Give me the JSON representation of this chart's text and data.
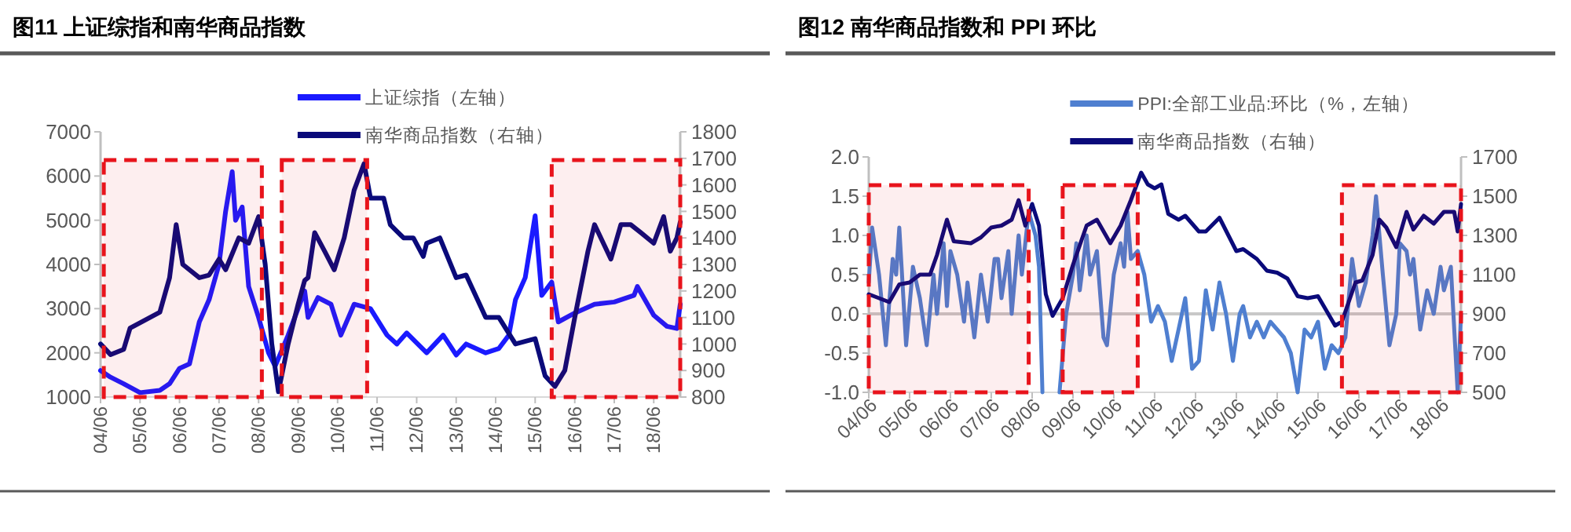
{
  "chart_data": [
    {
      "type": "line",
      "title": "图11  上证综指和南华商品指数",
      "legend": "top",
      "xlim": [
        "2004-06",
        "2019-02"
      ],
      "xticks": [
        {
          "value": "2004-06",
          "label": "04/06"
        },
        {
          "value": "2005-06",
          "label": "05/06"
        },
        {
          "value": "2006-06",
          "label": "06/06"
        },
        {
          "value": "2007-06",
          "label": "07/06"
        },
        {
          "value": "2008-06",
          "label": "08/06"
        },
        {
          "value": "2009-06",
          "label": "09/06"
        },
        {
          "value": "2010-06",
          "label": "10/06"
        },
        {
          "value": "2011-06",
          "label": "11/06"
        },
        {
          "value": "2012-06",
          "label": "12/06"
        },
        {
          "value": "2013-06",
          "label": "13/06"
        },
        {
          "value": "2014-06",
          "label": "14/06"
        },
        {
          "value": "2015-06",
          "label": "15/06"
        },
        {
          "value": "2016-06",
          "label": "16/06"
        },
        {
          "value": "2017-06",
          "label": "17/06"
        },
        {
          "value": "2018-06",
          "label": "18/06"
        }
      ],
      "ylim": [
        1000,
        7000
      ],
      "yticks": [
        1000,
        2000,
        3000,
        4000,
        5000,
        6000,
        7000
      ],
      "y2lim": [
        800,
        1800
      ],
      "y2ticks": [
        800,
        900,
        1000,
        1100,
        1200,
        1300,
        1400,
        1500,
        1600,
        1700,
        1800
      ],
      "bands": [
        {
          "axis": "x",
          "from": "2004-07",
          "to": "2008-07",
          "color": "#e8141c"
        },
        {
          "axis": "x",
          "from": "2009-01",
          "to": "2011-03",
          "color": "#e8141c"
        },
        {
          "axis": "x",
          "from": "2015-11",
          "to": "2019-02",
          "color": "#e8141c"
        }
      ],
      "series": [
        {
          "name": "上证综指（左轴）",
          "color": "#1a1aff",
          "x": [
            "2004-06",
            "2004-09",
            "2005-01",
            "2005-06",
            "2005-12",
            "2006-03",
            "2006-06",
            "2006-09",
            "2006-12",
            "2007-03",
            "2007-06",
            "2007-08",
            "2007-10",
            "2007-11",
            "2008-01",
            "2008-03",
            "2008-06",
            "2008-09",
            "2008-11",
            "2009-03",
            "2009-08",
            "2009-09",
            "2009-12",
            "2010-04",
            "2010-07",
            "2010-11",
            "2011-04",
            "2011-09",
            "2011-12",
            "2012-03",
            "2012-09",
            "2013-02",
            "2013-06",
            "2013-09",
            "2014-03",
            "2014-07",
            "2014-10",
            "2014-12",
            "2015-03",
            "2015-06",
            "2015-08",
            "2015-11",
            "2016-01",
            "2016-06",
            "2016-12",
            "2017-06",
            "2017-12",
            "2018-01",
            "2018-06",
            "2018-10",
            "2019-01",
            "2019-02"
          ],
          "values": [
            1600,
            1450,
            1300,
            1100,
            1150,
            1300,
            1650,
            1750,
            2700,
            3200,
            4000,
            5200,
            6100,
            5000,
            5300,
            3500,
            2800,
            2000,
            1700,
            2400,
            3400,
            2800,
            3250,
            3100,
            2400,
            3100,
            3000,
            2400,
            2200,
            2450,
            2000,
            2400,
            1950,
            2200,
            2000,
            2100,
            2400,
            3200,
            3700,
            5100,
            3300,
            3600,
            2700,
            2900,
            3100,
            3150,
            3300,
            3500,
            2850,
            2600,
            2550,
            3100
          ]
        },
        {
          "name": "南华商品指数（右轴）",
          "color": "#0a0a7a",
          "axis": "y2",
          "x": [
            "2004-06",
            "2004-09",
            "2005-01",
            "2005-03",
            "2005-06",
            "2005-12",
            "2006-03",
            "2006-05",
            "2006-07",
            "2006-12",
            "2007-03",
            "2007-06",
            "2007-08",
            "2007-12",
            "2008-03",
            "2008-06",
            "2008-08",
            "2008-10",
            "2008-12",
            "2009-03",
            "2009-06",
            "2009-08",
            "2009-09",
            "2009-11",
            "2010-02",
            "2010-05",
            "2010-08",
            "2010-11",
            "2011-02",
            "2011-04",
            "2011-08",
            "2011-10",
            "2012-02",
            "2012-05",
            "2012-08",
            "2012-09",
            "2013-01",
            "2013-06",
            "2013-09",
            "2014-03",
            "2014-07",
            "2014-12",
            "2015-06",
            "2015-09",
            "2015-12",
            "2016-03",
            "2016-06",
            "2016-10",
            "2016-12",
            "2017-05",
            "2017-08",
            "2017-11",
            "2018-02",
            "2018-06",
            "2018-09",
            "2018-11",
            "2019-01",
            "2019-02"
          ],
          "values": [
            1000,
            960,
            980,
            1060,
            1080,
            1120,
            1250,
            1450,
            1300,
            1250,
            1260,
            1320,
            1280,
            1400,
            1380,
            1480,
            1300,
            1000,
            820,
            1000,
            1150,
            1240,
            1250,
            1420,
            1350,
            1280,
            1400,
            1580,
            1680,
            1550,
            1550,
            1450,
            1400,
            1400,
            1330,
            1380,
            1400,
            1250,
            1260,
            1100,
            1100,
            1000,
            1020,
            880,
            840,
            900,
            1100,
            1350,
            1450,
            1320,
            1450,
            1450,
            1420,
            1380,
            1480,
            1350,
            1400,
            1460
          ]
        }
      ]
    },
    {
      "type": "line",
      "title": "图12  南华商品指数和 PPI 环比",
      "legend": "top",
      "xlim": [
        "2004-06",
        "2018-12"
      ],
      "xticks": [
        {
          "value": "2004-06",
          "label": "04/06"
        },
        {
          "value": "2005-06",
          "label": "05/06"
        },
        {
          "value": "2006-06",
          "label": "06/06"
        },
        {
          "value": "2007-06",
          "label": "07/06"
        },
        {
          "value": "2008-06",
          "label": "08/06"
        },
        {
          "value": "2009-06",
          "label": "09/06"
        },
        {
          "value": "2010-06",
          "label": "10/06"
        },
        {
          "value": "2011-06",
          "label": "11/06"
        },
        {
          "value": "2012-06",
          "label": "12/06"
        },
        {
          "value": "2013-06",
          "label": "13/06"
        },
        {
          "value": "2014-06",
          "label": "14/06"
        },
        {
          "value": "2015-06",
          "label": "15/06"
        },
        {
          "value": "2016-06",
          "label": "16/06"
        },
        {
          "value": "2017-06",
          "label": "17/06"
        },
        {
          "value": "2018-06",
          "label": "18/06"
        }
      ],
      "ylim": [
        -1,
        2
      ],
      "yticks": [
        {
          "value": -1,
          "label": "-1.0"
        },
        {
          "value": -0.5,
          "label": "-0.5"
        },
        {
          "value": 0,
          "label": "0.0"
        },
        {
          "value": 0.5,
          "label": "0.5"
        },
        {
          "value": 1,
          "label": "1.0"
        },
        {
          "value": 1.5,
          "label": "1.5"
        },
        {
          "value": 2,
          "label": "2.0"
        }
      ],
      "y2lim": [
        500,
        1700
      ],
      "y2ticks": [
        500,
        700,
        900,
        1100,
        1300,
        1500,
        1700
      ],
      "ref_lines": [
        {
          "axis": "y",
          "value": 0,
          "color": "#c8c8c8"
        }
      ],
      "bands": [
        {
          "axis": "x",
          "from": "2004-06",
          "to": "2008-05",
          "color": "#e8141c"
        },
        {
          "axis": "x",
          "from": "2009-03",
          "to": "2011-01",
          "color": "#e8141c"
        },
        {
          "axis": "x",
          "from": "2016-01",
          "to": "2018-12",
          "color": "#e8141c"
        }
      ],
      "series": [
        {
          "name": "PPI:全部工业品:环比（%，左轴）",
          "color": "#4f7fd0",
          "x": [
            "2004-06",
            "2004-07",
            "2004-09",
            "2004-11",
            "2005-01",
            "2005-02",
            "2005-03",
            "2005-05",
            "2005-07",
            "2005-09",
            "2005-11",
            "2006-01",
            "2006-02",
            "2006-04",
            "2006-05",
            "2006-06",
            "2006-08",
            "2006-10",
            "2006-11",
            "2007-01",
            "2007-03",
            "2007-05",
            "2007-07",
            "2007-08",
            "2007-09",
            "2007-11",
            "2007-12",
            "2008-02",
            "2008-03",
            "2008-05",
            "2008-07",
            "2008-08",
            "2008-09",
            "2008-10",
            "2009-01",
            "2009-02",
            "2009-04",
            "2009-06",
            "2009-07",
            "2009-08",
            "2009-10",
            "2009-11",
            "2010-01",
            "2010-03",
            "2010-04",
            "2010-06",
            "2010-08",
            "2010-09",
            "2010-10",
            "2010-11",
            "2011-01",
            "2011-03",
            "2011-05",
            "2011-07",
            "2011-09",
            "2011-11",
            "2012-01",
            "2012-03",
            "2012-05",
            "2012-07",
            "2012-09",
            "2012-11",
            "2013-01",
            "2013-03",
            "2013-05",
            "2013-07",
            "2013-08",
            "2013-10",
            "2013-12",
            "2014-02",
            "2014-04",
            "2014-06",
            "2014-08",
            "2014-10",
            "2014-12",
            "2015-02",
            "2015-04",
            "2015-06",
            "2015-08",
            "2015-10",
            "2015-12",
            "2016-02",
            "2016-04",
            "2016-06",
            "2016-08",
            "2016-10",
            "2016-11",
            "2017-01",
            "2017-03",
            "2017-05",
            "2017-06",
            "2017-08",
            "2017-09",
            "2017-10",
            "2017-12",
            "2018-02",
            "2018-04",
            "2018-06",
            "2018-07",
            "2018-09",
            "2018-11",
            "2018-12"
          ],
          "values": [
            0.4,
            1.1,
            0.5,
            -0.4,
            0.7,
            0.5,
            1.1,
            -0.4,
            0.6,
            0.2,
            -0.4,
            0.5,
            0.0,
            0.9,
            0.1,
            0.8,
            0.5,
            -0.1,
            0.4,
            -0.3,
            0.5,
            -0.1,
            0.7,
            0.7,
            0.2,
            0.8,
            0.0,
            1.0,
            0.5,
            1.3,
            1.0,
            0.6,
            -1.0,
            null,
            null,
            -1.0,
            0.0,
            0.5,
            0.9,
            0.3,
            1.0,
            0.5,
            0.8,
            -0.3,
            -0.4,
            0.5,
            0.9,
            0.6,
            1.3,
            0.7,
            0.8,
            0.5,
            -0.1,
            0.1,
            -0.1,
            -0.6,
            -0.2,
            0.2,
            -0.7,
            -0.6,
            0.3,
            -0.2,
            0.4,
            0.0,
            -0.6,
            0.0,
            0.1,
            -0.3,
            -0.1,
            -0.3,
            -0.1,
            -0.2,
            -0.3,
            -0.5,
            -1.0,
            -0.2,
            -0.3,
            -0.1,
            -0.7,
            -0.4,
            -0.5,
            -0.3,
            0.7,
            0.1,
            0.4,
            1.0,
            1.5,
            0.5,
            -0.4,
            0.0,
            0.9,
            0.8,
            0.5,
            0.7,
            -0.2,
            0.3,
            0.0,
            0.6,
            0.3,
            0.6,
            -1.0,
            0.0
          ]
        },
        {
          "name": "南华商品指数（右轴）",
          "color": "#0a0a7a",
          "axis": "y2",
          "x": [
            "2004-06",
            "2004-09",
            "2004-12",
            "2005-03",
            "2005-06",
            "2005-09",
            "2005-12",
            "2006-02",
            "2006-05",
            "2006-07",
            "2006-12",
            "2007-03",
            "2007-06",
            "2007-09",
            "2007-12",
            "2008-02",
            "2008-04",
            "2008-06",
            "2008-08",
            "2008-10",
            "2008-12",
            "2009-03",
            "2009-06",
            "2009-08",
            "2009-10",
            "2010-01",
            "2010-05",
            "2010-08",
            "2010-11",
            "2011-02",
            "2011-04",
            "2011-06",
            "2011-08",
            "2011-10",
            "2012-01",
            "2012-03",
            "2012-07",
            "2012-09",
            "2013-01",
            "2013-06",
            "2013-08",
            "2013-12",
            "2014-03",
            "2014-06",
            "2014-09",
            "2014-12",
            "2015-03",
            "2015-06",
            "2015-09",
            "2015-11",
            "2016-01",
            "2016-03",
            "2016-05",
            "2016-07",
            "2016-10",
            "2016-12",
            "2017-02",
            "2017-05",
            "2017-08",
            "2017-10",
            "2018-01",
            "2018-04",
            "2018-07",
            "2018-10",
            "2018-11",
            "2018-12"
          ],
          "values": [
            1000,
            980,
            960,
            1050,
            1060,
            1100,
            1100,
            1200,
            1380,
            1270,
            1260,
            1290,
            1340,
            1350,
            1380,
            1480,
            1350,
            1460,
            1350,
            1000,
            890,
            980,
            1150,
            1250,
            1350,
            1380,
            1260,
            1350,
            1480,
            1620,
            1560,
            1540,
            1560,
            1410,
            1380,
            1400,
            1320,
            1320,
            1390,
            1220,
            1230,
            1180,
            1120,
            1110,
            1080,
            990,
            980,
            990,
            900,
            840,
            860,
            960,
            1060,
            1070,
            1200,
            1380,
            1340,
            1240,
            1420,
            1330,
            1400,
            1360,
            1420,
            1420,
            1320,
            1460
          ]
        }
      ]
    }
  ]
}
